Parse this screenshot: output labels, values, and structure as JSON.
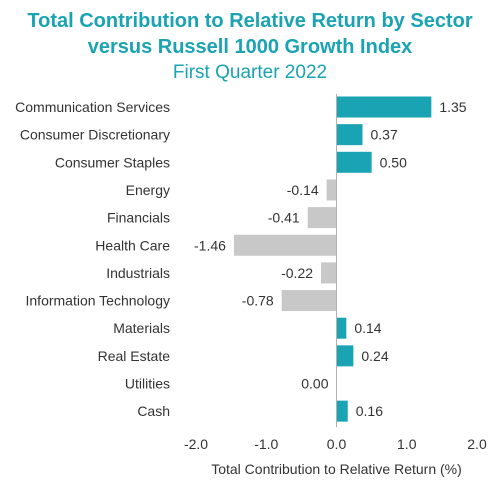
{
  "colors": {
    "positive": "#1aa3b3",
    "negative": "#c8c8c8",
    "title": "#1aa3b3",
    "axis": "#b0b0b0",
    "text": "#333333"
  },
  "chart_data": {
    "type": "bar",
    "orientation": "horizontal",
    "title": "Total Contribution to Relative Return by Sector",
    "subtitle_line2": "versus Russell 1000 Growth Index",
    "subtitle": "First Quarter 2022",
    "xlabel": "Total Contribution to Relative Return (%)",
    "ylabel": "",
    "xlim": [
      -2.0,
      2.0
    ],
    "xticks": [
      "-2.0",
      "-1.0",
      "0.0",
      "1.0",
      "2.0"
    ],
    "xtick_values": [
      -2.0,
      -1.0,
      0.0,
      1.0,
      2.0
    ],
    "grid": false,
    "categories": [
      "Communication Services",
      "Consumer Discretionary",
      "Consumer Staples",
      "Energy",
      "Financials",
      "Health Care",
      "Industrials",
      "Information Technology",
      "Materials",
      "Real Estate",
      "Utilities",
      "Cash"
    ],
    "values": [
      1.35,
      0.37,
      0.5,
      -0.14,
      -0.41,
      -1.46,
      -0.22,
      -0.78,
      0.14,
      0.24,
      0.0,
      0.16
    ],
    "value_labels": [
      "1.35",
      "0.37",
      "0.50",
      "-0.14",
      "-0.41",
      "-1.46",
      "-0.22",
      "-0.78",
      "0.14",
      "0.24",
      "0.00",
      "0.16"
    ]
  }
}
